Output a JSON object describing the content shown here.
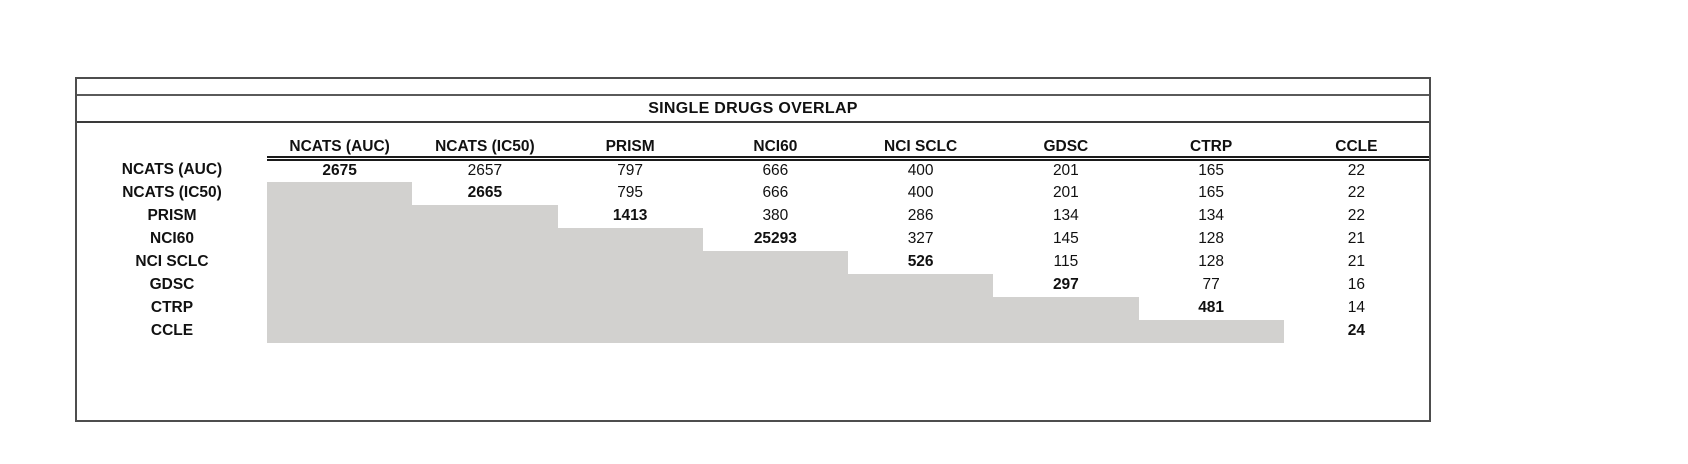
{
  "colors": {
    "shade": "#d2d1cf",
    "frame_border": "#4d4d4d",
    "header_rule": "#1a1a1a",
    "text": "#111111",
    "background": "#ffffff"
  },
  "chart_data": {
    "type": "table",
    "title": "SINGLE DRUGS OVERLAP",
    "columns": [
      "NCATS (AUC)",
      "NCATS (IC50)",
      "PRISM",
      "NCI60",
      "NCI SCLC",
      "GDSC",
      "CTRP",
      "CCLE"
    ],
    "rows": [
      {
        "label": "NCATS (AUC)",
        "values": [
          2675,
          2657,
          797,
          666,
          400,
          201,
          165,
          22
        ]
      },
      {
        "label": "NCATS (IC50)",
        "values": [
          null,
          2665,
          795,
          666,
          400,
          201,
          165,
          22
        ]
      },
      {
        "label": "PRISM",
        "values": [
          null,
          null,
          1413,
          380,
          286,
          134,
          134,
          22
        ]
      },
      {
        "label": "NCI60",
        "values": [
          null,
          null,
          null,
          25293,
          327,
          145,
          128,
          21
        ]
      },
      {
        "label": "NCI SCLC",
        "values": [
          null,
          null,
          null,
          null,
          526,
          115,
          128,
          21
        ]
      },
      {
        "label": "GDSC",
        "values": [
          null,
          null,
          null,
          null,
          null,
          297,
          77,
          16
        ]
      },
      {
        "label": "CTRP",
        "values": [
          null,
          null,
          null,
          null,
          null,
          null,
          481,
          14
        ]
      },
      {
        "label": "CCLE",
        "values": [
          null,
          null,
          null,
          null,
          null,
          null,
          null,
          24
        ]
      }
    ],
    "diagonal_bold": true,
    "lower_triangle_shaded": true,
    "legend_position": "none",
    "grid": "off"
  }
}
